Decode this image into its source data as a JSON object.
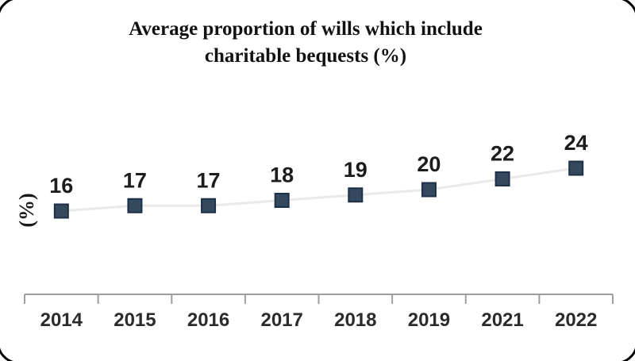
{
  "chart_data": {
    "type": "line",
    "title": "Average proportion of wills which include charitable bequests (%)",
    "title_lines": [
      "Average proportion of wills which include",
      "charitable bequests (%)"
    ],
    "ylabel": "(%)",
    "categories": [
      "2014",
      "2015",
      "2016",
      "2017",
      "2018",
      "2019",
      "2021",
      "2022"
    ],
    "series": [
      {
        "values": [
          16,
          17,
          17,
          18,
          19,
          20,
          22,
          24
        ]
      }
    ],
    "data_labels_shown": true,
    "legend": "none",
    "gridlines": false,
    "marker_shape": "square",
    "x_axis": {
      "tick_marks": "between_categories",
      "y_axis_line": "none"
    },
    "colors": {
      "marker_fill": "#34495E",
      "marker_border": "#1E3048",
      "line": "#E9E9E9",
      "axis": "#9E9E9E",
      "data_label": "#1C1C1C",
      "tick_label": "#2B2B2B",
      "title": "#121212"
    }
  },
  "frame": {
    "border_color": "#000000"
  }
}
